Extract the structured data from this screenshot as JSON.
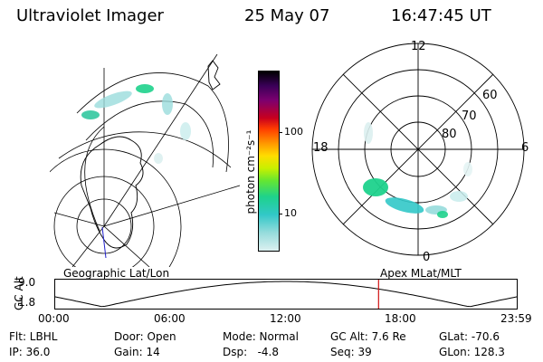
{
  "header": {
    "instrument": "Ultraviolet Imager",
    "date": "25 May 07",
    "time": "16:47:45 UT"
  },
  "left_panel": {
    "label": "Geographic Lat/Lon"
  },
  "right_panel": {
    "label": "Apex MLat/MLT",
    "mlt_labels": {
      "top": "12",
      "left": "18",
      "right": "6",
      "bottom": "0"
    },
    "lat_labels": [
      "60",
      "70",
      "80"
    ]
  },
  "colorbar": {
    "unit_label": "photon cm⁻²s⁻¹",
    "ticks": [
      "100",
      "10"
    ],
    "colors": [
      "#000000",
      "#3a0058",
      "#7c0070",
      "#c8001e",
      "#ff3c00",
      "#ff9600",
      "#ffdc00",
      "#c8f000",
      "#64e632",
      "#1ed28c",
      "#32c8c8",
      "#96dcdc",
      "#dcf0f0"
    ]
  },
  "timeline": {
    "ylabel": "GC Alt",
    "ticks_y": [
      "9.0",
      "1.8"
    ],
    "ticks_x": [
      "00:00",
      "06:00",
      "12:00",
      "18:00",
      "23:59"
    ],
    "current_time_marker": "16:47:45",
    "marker_color": "#d01010"
  },
  "status": {
    "filter": "Flt: LBHL",
    "door": "Door: Open",
    "mode": "Mode: Normal",
    "gc_alt": "GC Alt: 7.6 Re",
    "glat": "GLat: -70.6",
    "ip": "IP: 36.0",
    "gain": "Gain: 14",
    "dsp": "Dsp:   -4.8",
    "seq": "Seq: 39",
    "glon": "GLon: 128.3"
  }
}
